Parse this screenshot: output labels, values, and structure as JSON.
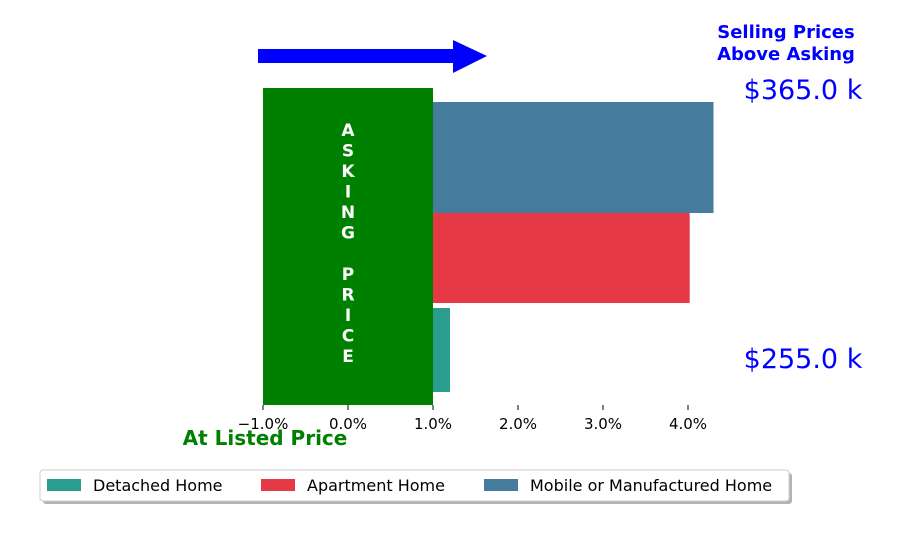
{
  "chart_data": {
    "type": "bar",
    "orientation": "horizontal",
    "x_ticks": [
      "−1.0%",
      "0.0%",
      "1.0%",
      "2.0%",
      "3.0%",
      "4.0%"
    ],
    "x_tick_values": [
      -1.0,
      0.0,
      1.0,
      2.0,
      3.0,
      4.0
    ],
    "xlim": [
      -1.1,
      5.0
    ],
    "asking_price_band": {
      "from": -1.0,
      "to": 1.0,
      "color": "#008000",
      "label": "ASKING PRICE"
    },
    "series": [
      {
        "name": "Detached Home",
        "value": 1.2,
        "color": "#2a9d8f"
      },
      {
        "name": "Apartment Home",
        "value": 4.02,
        "color": "#e63946"
      },
      {
        "name": "Mobile or Manufactured Home",
        "value": 4.3,
        "color": "#457b9d"
      }
    ],
    "annotations": {
      "selling_title_line1": "Selling Prices",
      "selling_title_line2": "Above Asking",
      "top_price": "$365.0 k",
      "bottom_price": "$255.0 k",
      "listed_label": "At Listed Price",
      "asking_letters_1": [
        "A",
        "S",
        "K",
        "I",
        "N",
        "G"
      ],
      "asking_letters_2": [
        "P",
        "R",
        "I",
        "C",
        "E"
      ]
    },
    "arrow_color": "#0000ff",
    "legend_placement": "bottom"
  }
}
